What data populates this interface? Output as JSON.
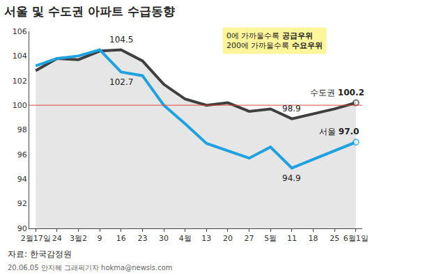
{
  "chart_data": {
    "type": "line",
    "title": "서울 및 수도권 아파트 수급동향",
    "categories": [
      "2월17일",
      "24",
      "3월2",
      "9",
      "16",
      "23",
      "30",
      "4월",
      "13",
      "20",
      "27",
      "5월",
      "11",
      "18",
      "25",
      "6월1일"
    ],
    "series": [
      {
        "name": "수도권",
        "color": "#3f3f3f",
        "values": [
          102.8,
          103.8,
          103.7,
          104.4,
          104.5,
          103.6,
          101.7,
          100.5,
          100.0,
          100.2,
          99.5,
          99.7,
          98.9,
          99.3,
          99.7,
          100.2
        ],
        "value_labels": [
          null,
          null,
          null,
          null,
          "104.5",
          null,
          null,
          null,
          null,
          null,
          null,
          null,
          "98.9",
          null,
          null,
          "100.2"
        ]
      },
      {
        "name": "서울",
        "color": "#1fa3e0",
        "values": [
          103.2,
          103.8,
          104.0,
          104.5,
          102.7,
          102.4,
          100.0,
          98.5,
          96.9,
          96.3,
          95.7,
          96.6,
          94.9,
          95.6,
          96.3,
          97.0
        ],
        "value_labels": [
          null,
          null,
          null,
          null,
          "102.7",
          null,
          null,
          null,
          null,
          null,
          null,
          null,
          "94.9",
          null,
          null,
          "97.0"
        ]
      }
    ],
    "ylim": [
      90,
      106
    ],
    "yticks": [
      90,
      92,
      94,
      96,
      98,
      100,
      102,
      104,
      106
    ],
    "reference_value": 100,
    "grid": false,
    "note": [
      "0에 가까울수록 공급우위",
      "200에 가까울수록 수요우위"
    ],
    "source": "자료: 한국감정원",
    "credit": "20.06.05 안지혜 그래픽기자 hokma@newsis.com"
  }
}
